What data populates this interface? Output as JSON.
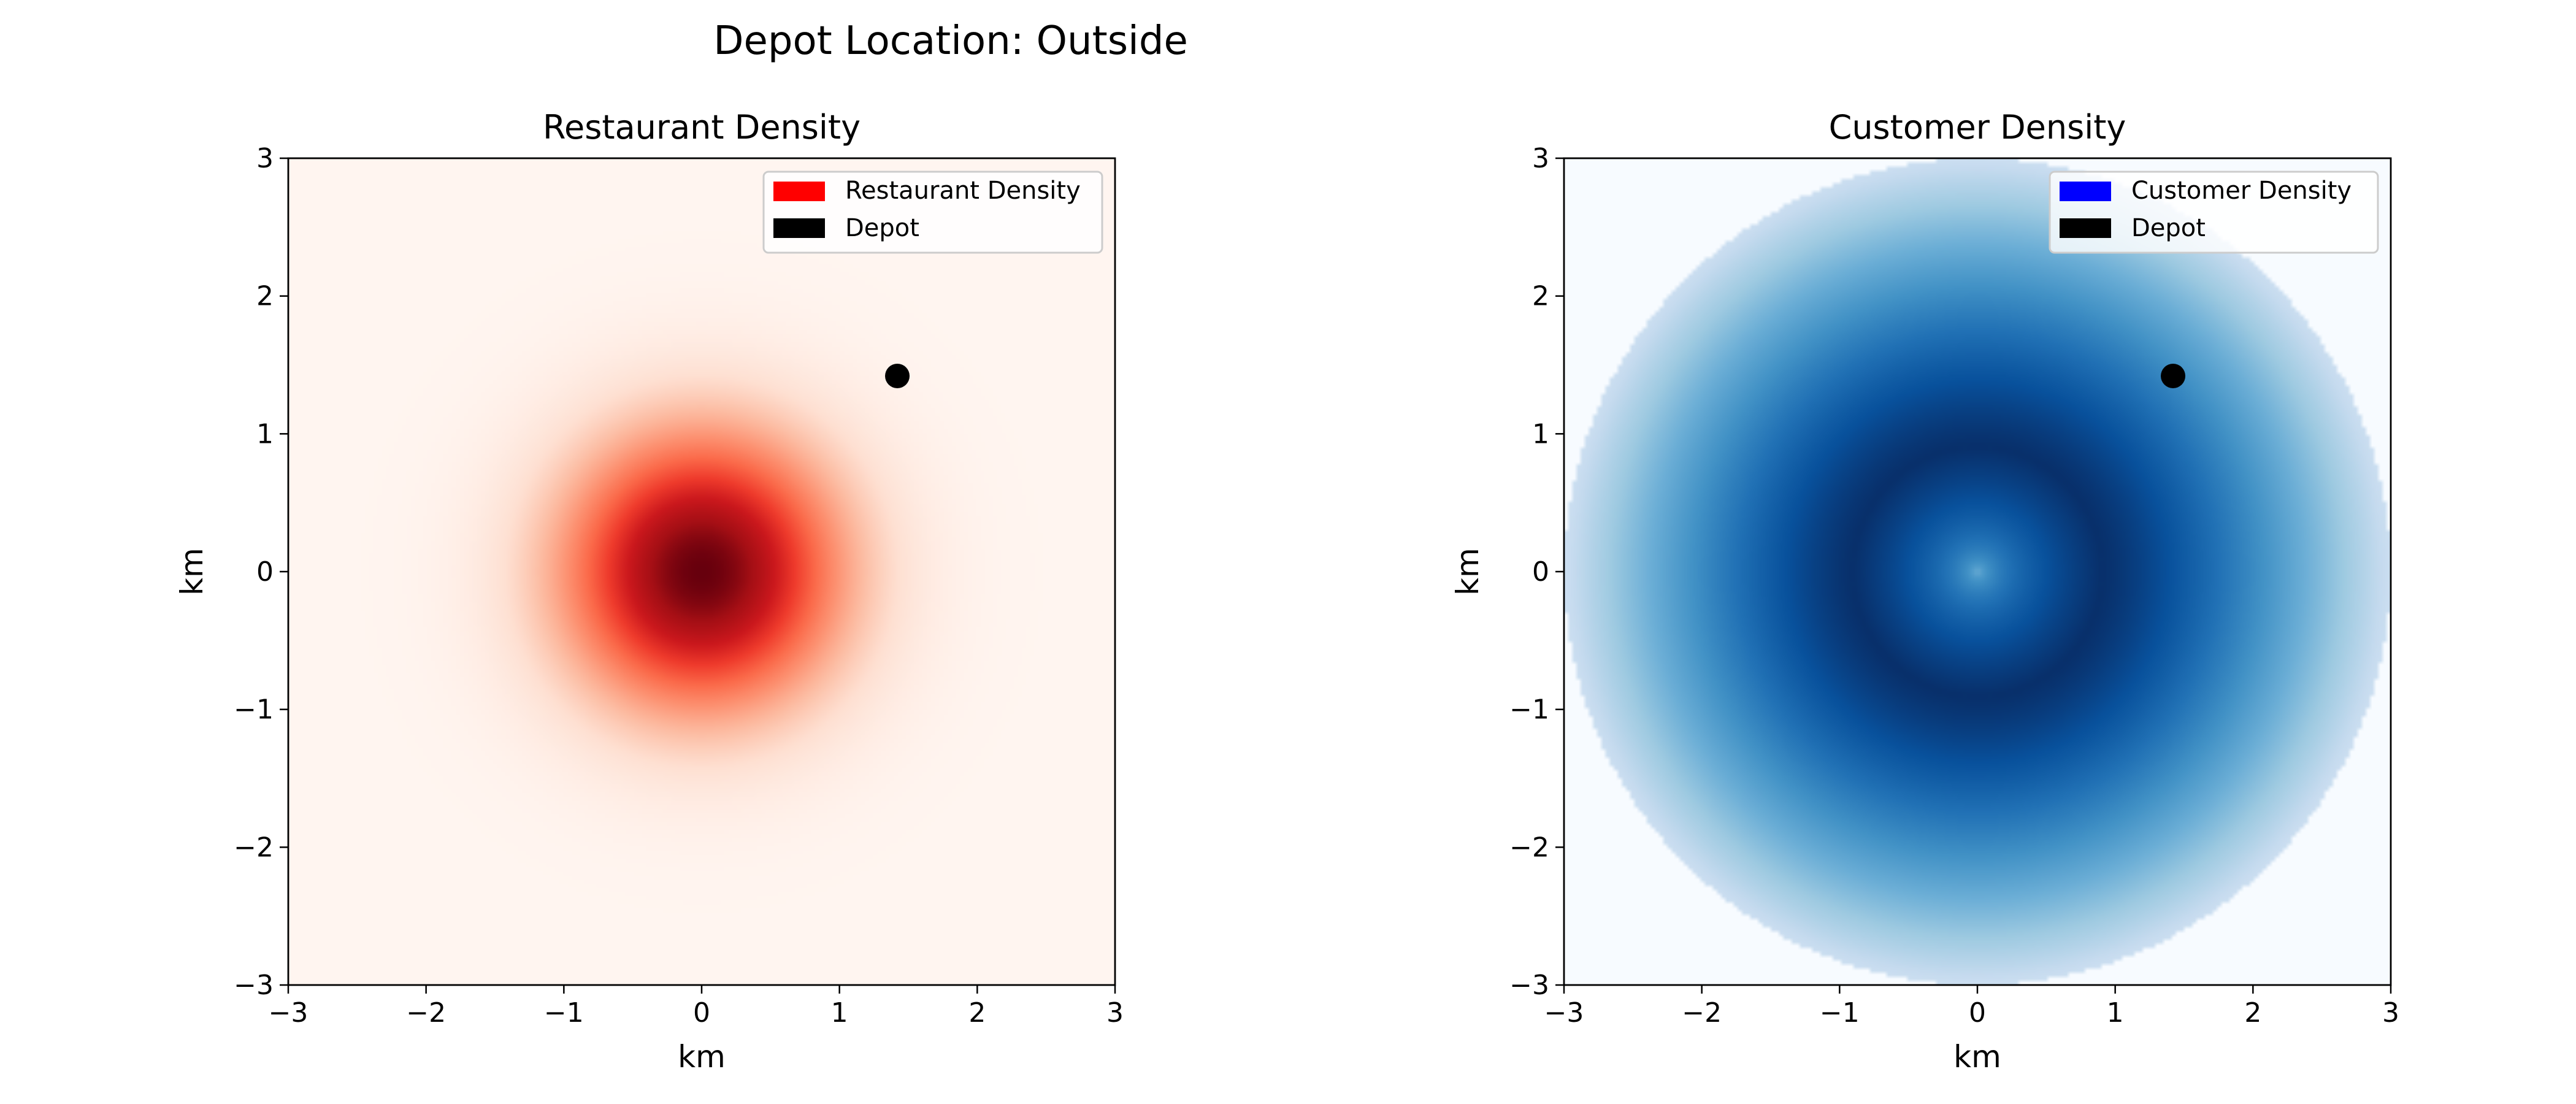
{
  "suptitle": "Depot Location: Outside",
  "chart_data": [
    {
      "type": "heatmap",
      "title": "Restaurant Density",
      "xlabel": "km",
      "ylabel": "km",
      "xlim": [
        -3,
        3
      ],
      "ylim": [
        -3,
        3
      ],
      "xticks": [
        -3,
        -2,
        -1,
        0,
        1,
        2,
        3
      ],
      "yticks": [
        -3,
        -2,
        -1,
        0,
        1,
        2,
        3
      ],
      "xtick_labels": [
        "−3",
        "−2",
        "−1",
        "0",
        "1",
        "2",
        "3"
      ],
      "ytick_labels": [
        "−3",
        "−2",
        "−1",
        "0",
        "1",
        "2",
        "3"
      ],
      "colormap": "Reds",
      "density": {
        "shape": "gaussian",
        "center": [
          0,
          0
        ],
        "sigma_km": 0.7
      },
      "depot": {
        "x": 1.42,
        "y": 1.42,
        "color": "#000000"
      },
      "grid": false,
      "legend_position": "top-right",
      "legend": [
        {
          "label": "Restaurant Density",
          "color": "#ff0000"
        },
        {
          "label": "Depot",
          "color": "#000000"
        }
      ]
    },
    {
      "type": "heatmap",
      "title": "Customer Density",
      "xlabel": "km",
      "ylabel": "km",
      "xlim": [
        -3,
        3
      ],
      "ylim": [
        -3,
        3
      ],
      "xticks": [
        -3,
        -2,
        -1,
        0,
        1,
        2,
        3
      ],
      "yticks": [
        -3,
        -2,
        -1,
        0,
        1,
        2,
        3
      ],
      "xtick_labels": [
        "−3",
        "−2",
        "−1",
        "0",
        "1",
        "2",
        "3"
      ],
      "ytick_labels": [
        "−3",
        "−2",
        "−1",
        "0",
        "1",
        "2",
        "3"
      ],
      "colormap": "Blues",
      "density": {
        "shape": "ring",
        "radius_km": 3,
        "peak_radius_km": 0.9
      },
      "depot": {
        "x": 1.42,
        "y": 1.42,
        "color": "#000000"
      },
      "grid": false,
      "legend_position": "top-right",
      "legend": [
        {
          "label": "Customer Density",
          "color": "#0000ff"
        },
        {
          "label": "Depot",
          "color": "#000000"
        }
      ]
    }
  ]
}
